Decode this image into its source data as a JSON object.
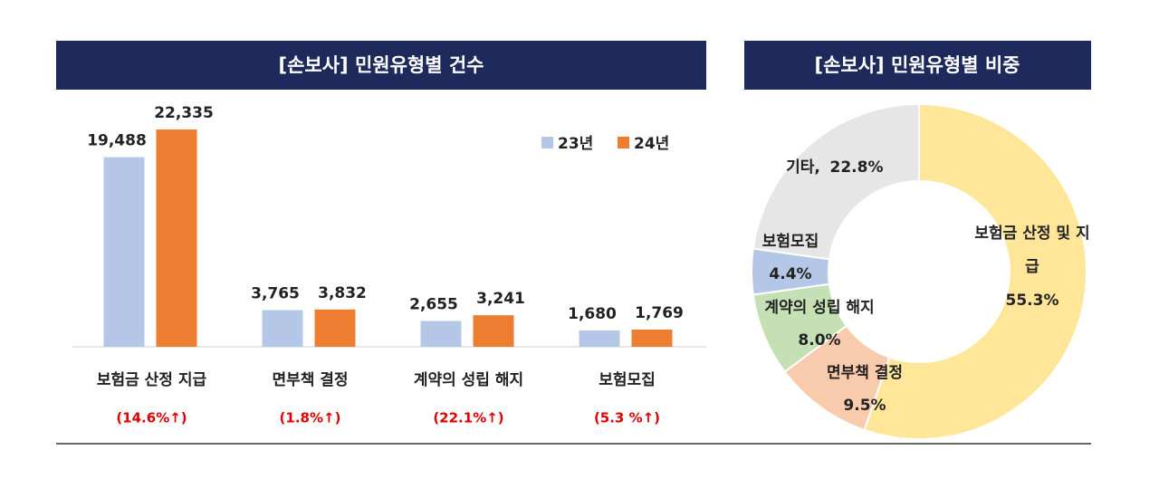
{
  "chart_data": [
    {
      "type": "bar",
      "title": "[손보사] 민원유형별 건수",
      "categories": [
        "보험금 산정 지급",
        "면부책 결정",
        "계약의 성립 해지",
        "보험모집"
      ],
      "annotations": [
        "(14.6%↑)",
        "(1.8%↑)",
        "(22.1%↑)",
        "(5.3 %↑)"
      ],
      "legend": "top-right",
      "series": [
        {
          "name": "23년",
          "color": "#b4c7e7",
          "values": [
            19488,
            3765,
            2655,
            1680
          ],
          "value_labels": [
            "19,488",
            "3,765",
            "2,655",
            "1,680"
          ]
        },
        {
          "name": "24년",
          "color": "#ed7d31",
          "values": [
            22335,
            3832,
            3241,
            1769
          ],
          "value_labels": [
            "22,335",
            "3,832",
            "3,241",
            "1,769"
          ]
        }
      ]
    },
    {
      "type": "donut",
      "title": "[손보사] 민원유형별 비중",
      "categories": [
        "보험금 산정 및 지급",
        "면부책 결정",
        "계약의 성립 해지",
        "보험모집",
        "기타"
      ],
      "values": [
        55.3,
        9.5,
        8.0,
        4.4,
        22.8
      ],
      "value_labels": [
        "55.3%",
        "9.5%",
        "8.0%",
        "4.4%",
        "22.8%"
      ],
      "colors": [
        "#ffe699",
        "#f8cbad",
        "#c5e0b4",
        "#b4c7e7",
        "#e7e6e6"
      ]
    }
  ]
}
